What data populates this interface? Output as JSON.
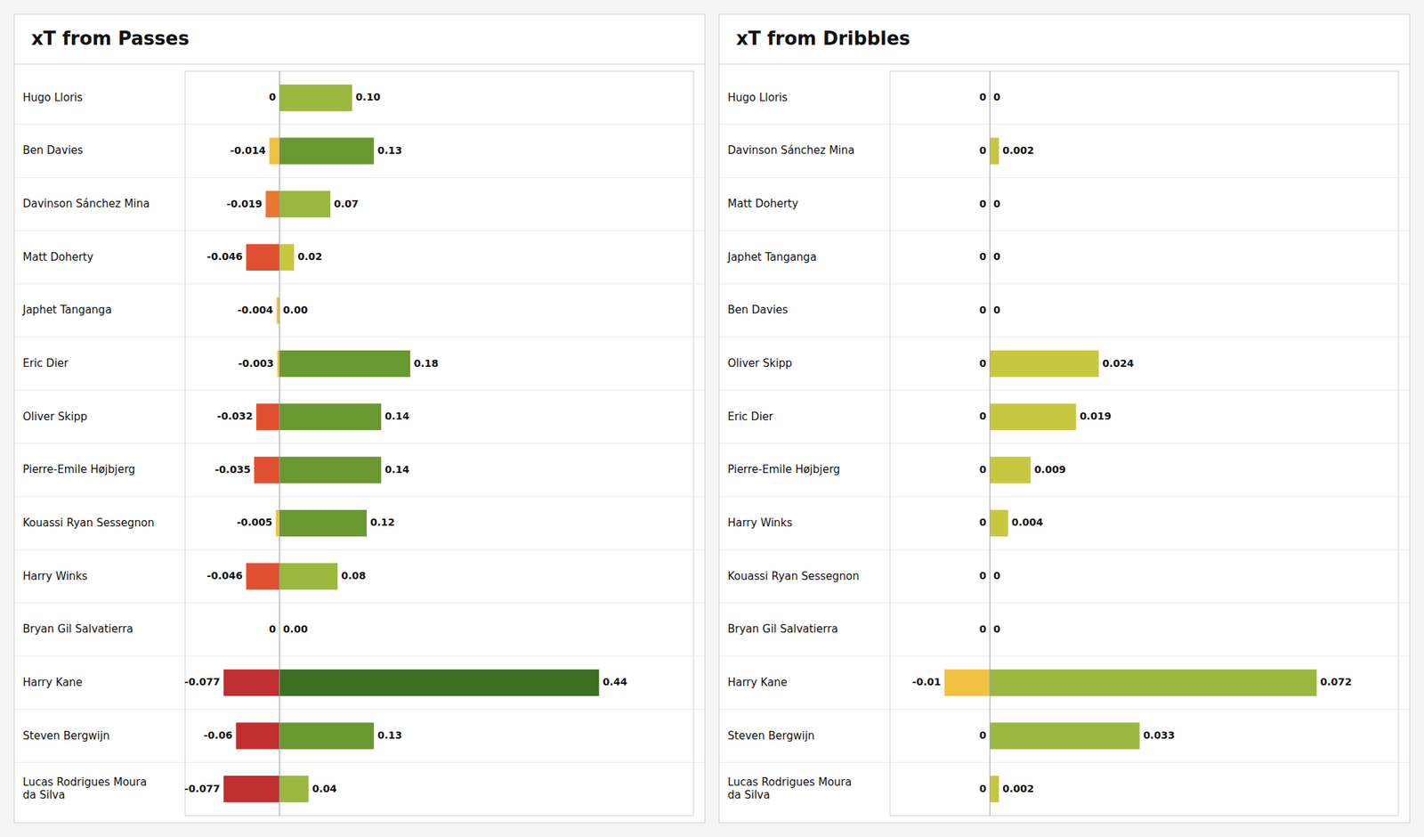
{
  "chart_data": [
    {
      "type": "bar",
      "orientation": "horizontal",
      "title": "xT from Passes",
      "categories": [
        "Hugo Lloris",
        "Ben Davies",
        "Davinson Sánchez Mina",
        "Matt Doherty",
        "Japhet Tanganga",
        "Eric  Dier",
        "Oliver Skipp",
        "Pierre-Emile Højbjerg",
        "Kouassi Ryan Sessegnon",
        "Harry Winks",
        "Bryan Gil Salvatierra",
        "Harry Kane",
        "Steven Bergwijn",
        "Lucas Rodrigues Moura\nda Silva"
      ],
      "series": [
        {
          "values": [
            0.0,
            -0.014,
            -0.019,
            -0.046,
            -0.004,
            -0.003,
            -0.032,
            -0.035,
            -0.005,
            -0.046,
            0.0,
            -0.077,
            -0.06,
            -0.077
          ],
          "value_labels": [
            "0",
            "-0.014",
            "-0.019",
            "-0.046",
            "-0.004",
            "-0.003",
            "-0.032",
            "-0.035",
            "-0.005",
            "-0.046",
            "0",
            "-0.077",
            "-0.06",
            "-0.077"
          ],
          "colors": [
            null,
            "#F0C040",
            "#E87830",
            "#E05030",
            "#F0C040",
            "#F0C040",
            "#E05030",
            "#E05030",
            "#F0C040",
            "#E05030",
            null,
            "#C03030",
            "#C03030",
            "#C03030"
          ]
        },
        {
          "values": [
            0.1,
            0.13,
            0.07,
            0.02,
            0.0,
            0.18,
            0.14,
            0.14,
            0.12,
            0.08,
            0.0,
            0.44,
            0.13,
            0.04
          ],
          "value_labels": [
            "0.10",
            "0.13",
            "0.07",
            "0.02",
            "0.00",
            "0.18",
            "0.14",
            "0.14",
            "0.12",
            "0.08",
            "0.00",
            "0.44",
            "0.13",
            "0.04"
          ],
          "colors": [
            "#9AB840",
            "#6A9830",
            "#9AB840",
            "#C8C840",
            null,
            "#6A9830",
            "#6A9830",
            "#6A9830",
            "#6A9830",
            "#9AB840",
            null,
            "#3A7020",
            "#6A9830",
            "#9AB840"
          ]
        }
      ],
      "xlim": [
        -0.13,
        0.57
      ],
      "tick_labels": "y",
      "data_labels": true,
      "grid": false
    },
    {
      "type": "bar",
      "orientation": "horizontal",
      "title": "xT from Dribbles",
      "categories": [
        "Hugo Lloris",
        "Davinson Sánchez Mina",
        "Matt Doherty",
        "Japhet Tanganga",
        "Ben Davies",
        "Oliver Skipp",
        "Eric  Dier",
        "Pierre-Emile Højbjerg",
        "Harry Winks",
        "Kouassi Ryan Sessegnon",
        "Bryan Gil Salvatierra",
        "Harry Kane",
        "Steven Bergwijn",
        "Lucas Rodrigues Moura\nda Silva"
      ],
      "series": [
        {
          "values": [
            0.0,
            0.0,
            0.0,
            0.0,
            0.0,
            0.0,
            0.0,
            0.0,
            0.0,
            0.0,
            0.0,
            -0.01,
            0.0,
            0.0
          ],
          "value_labels": [
            "0",
            "0",
            "0",
            "0",
            "0",
            "0",
            "0",
            "0",
            "0",
            "0",
            "0",
            "-0.01",
            "0",
            "0"
          ],
          "colors": [
            null,
            null,
            null,
            null,
            null,
            null,
            null,
            null,
            null,
            null,
            null,
            "#F0C040",
            null,
            null
          ]
        },
        {
          "values": [
            0.0,
            0.002,
            0.0,
            0.0,
            0.0,
            0.024,
            0.019,
            0.009,
            0.004,
            0.0,
            0.0,
            0.072,
            0.033,
            0.002
          ],
          "value_labels": [
            "0",
            "0.002",
            "0",
            "0",
            "0",
            "0.024",
            "0.019",
            "0.009",
            "0.004",
            "0",
            "0",
            "0.072",
            "0.033",
            "0.002"
          ],
          "colors": [
            null,
            "#C8C840",
            null,
            null,
            null,
            "#C8C840",
            "#C8C840",
            "#C8C840",
            "#C8C840",
            null,
            null,
            "#9AB840",
            "#9AB840",
            "#C8C840"
          ]
        }
      ],
      "xlim": [
        -0.022,
        0.09
      ],
      "tick_labels": "y",
      "data_labels": true,
      "grid": false
    }
  ]
}
